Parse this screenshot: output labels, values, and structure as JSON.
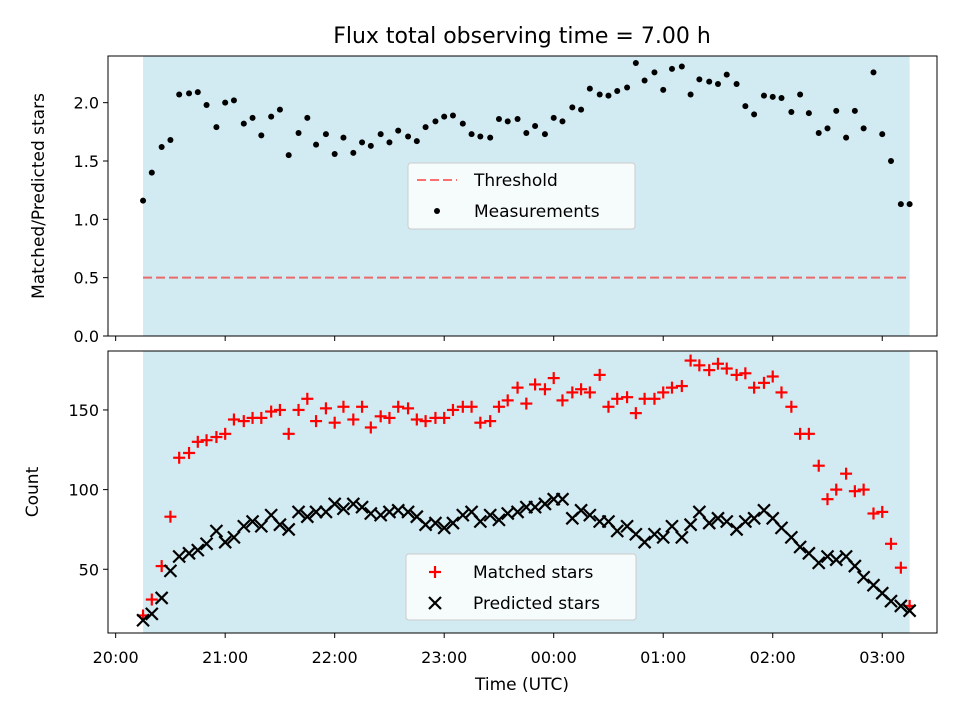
{
  "title": "Flux total observing time = 7.00 h",
  "colors": {
    "span": "#add8e6",
    "threshold": "#ff0000",
    "matched": "#ff0000",
    "predicted": "#000000",
    "measurement": "#000000"
  },
  "chart_data": [
    {
      "type": "scatter",
      "ylabel": "Matched/Predicted stars",
      "ylim": [
        0,
        2.4
      ],
      "yticks": [
        "0.0",
        "0.5",
        "1.0",
        "1.5",
        "2.0"
      ],
      "xlim": [
        19.93,
        27.5
      ],
      "span": [
        20.25,
        27.25
      ],
      "threshold": 0.5,
      "grid": false,
      "legend_position": "center",
      "legend": [
        "Threshold",
        "Measurements"
      ],
      "series": [
        {
          "name": "Measurements",
          "marker": "dot",
          "x": [
            20.25,
            20.33,
            20.42,
            20.5,
            20.58,
            20.67,
            20.75,
            20.83,
            20.92,
            21.0,
            21.08,
            21.17,
            21.25,
            21.33,
            21.42,
            21.5,
            21.58,
            21.67,
            21.75,
            21.83,
            21.92,
            22.0,
            22.08,
            22.17,
            22.25,
            22.33,
            22.42,
            22.5,
            22.58,
            22.67,
            22.75,
            22.83,
            22.92,
            23.0,
            23.08,
            23.17,
            23.25,
            23.33,
            23.42,
            23.5,
            23.58,
            23.67,
            23.75,
            23.83,
            23.92,
            24.0,
            24.08,
            24.17,
            24.25,
            24.33,
            24.42,
            24.5,
            24.58,
            24.67,
            24.75,
            24.83,
            24.92,
            25.0,
            25.08,
            25.17,
            25.25,
            25.33,
            25.42,
            25.5,
            25.58,
            25.67,
            25.75,
            25.83,
            25.92,
            26.0,
            26.08,
            26.17,
            26.25,
            26.33,
            26.42,
            26.5,
            26.58,
            26.67,
            26.75,
            26.83,
            26.92,
            27.0,
            27.08,
            27.17,
            27.25
          ],
          "y": [
            1.16,
            1.4,
            1.62,
            1.68,
            2.07,
            2.08,
            2.09,
            1.98,
            1.79,
            2.0,
            2.02,
            1.82,
            1.87,
            1.72,
            1.88,
            1.94,
            1.55,
            1.74,
            1.87,
            1.64,
            1.73,
            1.56,
            1.7,
            1.57,
            1.66,
            1.63,
            1.73,
            1.66,
            1.76,
            1.71,
            1.67,
            1.79,
            1.84,
            1.88,
            1.89,
            1.82,
            1.73,
            1.71,
            1.7,
            1.86,
            1.84,
            1.86,
            1.74,
            1.8,
            1.73,
            1.87,
            1.84,
            1.96,
            1.94,
            2.12,
            2.07,
            2.06,
            2.1,
            2.13,
            2.34,
            2.19,
            2.26,
            2.11,
            2.29,
            2.31,
            2.07,
            2.2,
            2.18,
            2.16,
            2.24,
            2.16,
            1.97,
            1.9,
            2.06,
            2.05,
            2.04,
            1.92,
            2.07,
            1.91,
            1.74,
            1.78,
            1.93,
            1.7,
            1.93,
            1.78,
            2.26,
            1.73,
            1.5,
            1.13,
            1.13
          ]
        }
      ]
    },
    {
      "type": "scatter",
      "xlabel": "Time (UTC)",
      "ylabel": "Count",
      "ylim": [
        10,
        187
      ],
      "yticks": [
        "50",
        "100",
        "150"
      ],
      "xlim": [
        19.93,
        27.5
      ],
      "xticks": [
        "20:00",
        "21:00",
        "22:00",
        "23:00",
        "00:00",
        "01:00",
        "02:00",
        "03:00"
      ],
      "span": [
        20.25,
        27.25
      ],
      "grid": false,
      "legend_position": "lower center",
      "legend": [
        "Matched stars",
        "Predicted stars"
      ],
      "series": [
        {
          "name": "Matched stars",
          "marker": "plus",
          "x": [
            20.25,
            20.33,
            20.42,
            20.5,
            20.58,
            20.67,
            20.75,
            20.83,
            20.92,
            21.0,
            21.08,
            21.17,
            21.25,
            21.33,
            21.42,
            21.5,
            21.58,
            21.67,
            21.75,
            21.83,
            21.92,
            22.0,
            22.08,
            22.17,
            22.25,
            22.33,
            22.42,
            22.5,
            22.58,
            22.67,
            22.75,
            22.83,
            22.92,
            23.0,
            23.08,
            23.17,
            23.25,
            23.33,
            23.42,
            23.5,
            23.58,
            23.67,
            23.75,
            23.83,
            23.92,
            24.0,
            24.08,
            24.17,
            24.25,
            24.33,
            24.42,
            24.5,
            24.58,
            24.67,
            24.75,
            24.83,
            24.92,
            25.0,
            25.08,
            25.17,
            25.25,
            25.33,
            25.42,
            25.5,
            25.58,
            25.67,
            25.75,
            25.83,
            25.92,
            26.0,
            26.08,
            26.17,
            26.25,
            26.33,
            26.42,
            26.5,
            26.58,
            26.67,
            26.75,
            26.83,
            26.92,
            27.0,
            27.08,
            27.17,
            27.25
          ],
          "y": [
            21,
            31,
            52,
            83,
            120,
            123,
            130,
            131,
            133,
            135,
            144,
            143,
            145,
            145,
            149,
            150,
            135,
            150,
            157,
            143,
            151,
            142,
            152,
            144,
            152,
            139,
            146,
            145,
            152,
            151,
            144,
            143,
            145,
            145,
            150,
            152,
            152,
            142,
            143,
            152,
            156,
            164,
            154,
            166,
            163,
            170,
            156,
            161,
            163,
            161,
            172,
            152,
            157,
            158,
            148,
            157,
            157,
            161,
            164,
            165,
            181,
            178,
            175,
            179,
            176,
            172,
            173,
            164,
            167,
            171,
            161,
            152,
            135,
            135,
            115,
            94,
            100,
            110,
            99,
            100,
            85,
            86,
            66,
            51,
            27
          ]
        },
        {
          "name": "Predicted stars",
          "marker": "x",
          "x": [
            20.25,
            20.33,
            20.42,
            20.5,
            20.58,
            20.67,
            20.75,
            20.83,
            20.92,
            21.0,
            21.08,
            21.17,
            21.25,
            21.33,
            21.42,
            21.5,
            21.58,
            21.67,
            21.75,
            21.83,
            21.92,
            22.0,
            22.08,
            22.17,
            22.25,
            22.33,
            22.42,
            22.5,
            22.58,
            22.67,
            22.75,
            22.83,
            22.92,
            23.0,
            23.08,
            23.17,
            23.25,
            23.33,
            23.42,
            23.5,
            23.58,
            23.67,
            23.75,
            23.83,
            23.92,
            24.0,
            24.08,
            24.17,
            24.25,
            24.33,
            24.42,
            24.5,
            24.58,
            24.67,
            24.75,
            24.83,
            24.92,
            25.0,
            25.08,
            25.17,
            25.25,
            25.33,
            25.42,
            25.5,
            25.58,
            25.67,
            25.75,
            25.83,
            25.92,
            26.0,
            26.08,
            26.17,
            26.25,
            26.33,
            26.42,
            26.5,
            26.58,
            26.67,
            26.75,
            26.83,
            26.92,
            27.0,
            27.08,
            27.17,
            27.25
          ],
          "y": [
            18,
            22,
            32,
            49,
            58,
            60,
            62,
            66,
            74,
            67,
            70,
            77,
            80,
            77,
            84,
            78,
            75,
            86,
            83,
            86,
            86,
            91,
            88,
            91,
            89,
            85,
            84,
            86,
            87,
            86,
            83,
            78,
            79,
            76,
            79,
            84,
            86,
            80,
            84,
            81,
            85,
            86,
            89,
            89,
            91,
            94,
            94,
            82,
            87,
            84,
            80,
            80,
            74,
            77,
            72,
            67,
            72,
            70,
            77,
            70,
            78,
            86,
            79,
            82,
            80,
            75,
            80,
            82,
            87,
            82,
            76,
            70,
            64,
            60,
            54,
            58,
            56,
            58,
            52,
            45,
            40,
            35,
            30,
            27,
            24
          ]
        }
      ]
    }
  ]
}
